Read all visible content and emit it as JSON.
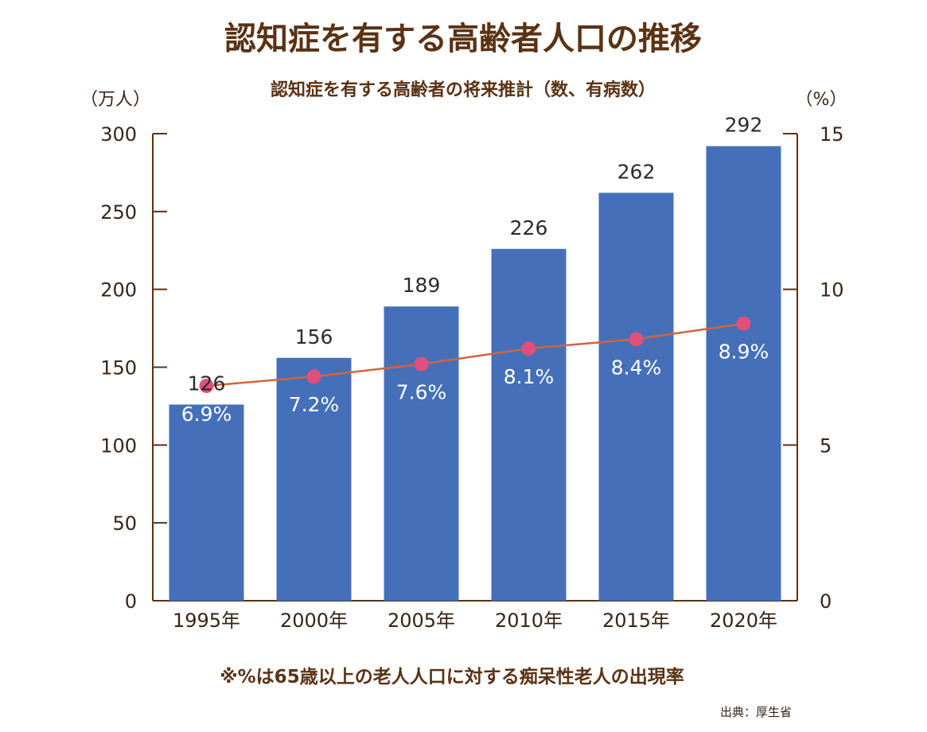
{
  "chart_data": {
    "type": "bar",
    "title": "認知症を有する高齢者人口の推移",
    "subtitle": "認知症を有する高齢者の将来推計（数、有病数）",
    "y_left_unit": "（万人）",
    "y_right_unit": "（%）",
    "categories": [
      "1995年",
      "2000年",
      "2005年",
      "2010年",
      "2015年",
      "2020年"
    ],
    "ylim": [
      0,
      300
    ],
    "y_ticks": [
      0,
      50,
      100,
      150,
      200,
      250,
      300
    ],
    "y2lim": [
      0,
      15
    ],
    "y2_ticks": [
      0,
      5,
      10,
      15
    ],
    "bar_color": "#4570b9",
    "line_color": "#d2643c",
    "marker_color": "#e0507a",
    "grid": false,
    "series": [
      {
        "type": "bar",
        "axis": "left",
        "values": [
          126,
          156,
          189,
          226,
          262,
          292
        ],
        "labels": [
          "126",
          "156",
          "189",
          "226",
          "262",
          "292"
        ]
      },
      {
        "type": "line",
        "axis": "right",
        "values": [
          6.9,
          7.2,
          7.6,
          8.1,
          8.4,
          8.9
        ],
        "labels": [
          "6.9%",
          "7.2%",
          "7.6%",
          "8.1%",
          "8.4%",
          "8.9%"
        ]
      }
    ]
  },
  "footnote": "※%は65歳以上の老人人口に対する痴呆性老人の出現率",
  "source": "出典：厚生省"
}
